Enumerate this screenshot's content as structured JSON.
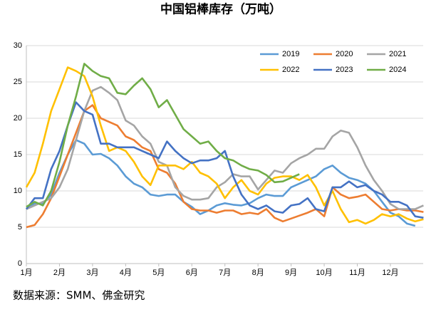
{
  "chart_data": {
    "type": "line",
    "title": "中国铝棒库存（万吨）",
    "source": "数据来源：SMM、佛金研究",
    "x": [
      0,
      0.25,
      0.5,
      0.75,
      1,
      1.25,
      1.5,
      1.75,
      2,
      2.25,
      2.5,
      2.75,
      3,
      3.25,
      3.5,
      3.75,
      4,
      4.25,
      4.5,
      4.75,
      5,
      5.25,
      5.5,
      5.75,
      6,
      6.25,
      6.5,
      6.75,
      7,
      7.25,
      7.5,
      7.75,
      8,
      8.25,
      8.5,
      8.75,
      9,
      9.25,
      9.5,
      9.75,
      10,
      10.25,
      10.5,
      10.75,
      11,
      11.25,
      11.5,
      11.75,
      12
    ],
    "xlim": [
      0,
      12
    ],
    "xticks": [
      {
        "value": 0,
        "label": "1月"
      },
      {
        "value": 1,
        "label": "2月"
      },
      {
        "value": 2,
        "label": "3月"
      },
      {
        "value": 3,
        "label": "4月"
      },
      {
        "value": 4,
        "label": "5月"
      },
      {
        "value": 5,
        "label": "6月"
      },
      {
        "value": 6,
        "label": "7月"
      },
      {
        "value": 7,
        "label": "8月"
      },
      {
        "value": 8,
        "label": "9月"
      },
      {
        "value": 9,
        "label": "10月"
      },
      {
        "value": 10,
        "label": "11月"
      },
      {
        "value": 11,
        "label": "12月"
      }
    ],
    "ylim": [
      0,
      30
    ],
    "yticks": [
      0,
      5,
      10,
      15,
      20,
      25,
      30
    ],
    "grid": true,
    "legend": "top-right",
    "series": [
      {
        "name": "2019",
        "color": "#5b9bd5",
        "values": [
          7.5,
          8.3,
          8.2,
          9.5,
          12.5,
          15,
          17,
          16.5,
          15,
          15.1,
          14.5,
          13.5,
          12,
          11,
          10.5,
          9.5,
          9.3,
          9.5,
          9.5,
          8.5,
          7.8,
          6.8,
          7.3,
          8,
          8.3,
          8.1,
          8,
          8.3,
          9,
          9.5,
          9.3,
          9.3,
          10.5,
          11,
          11.5,
          12,
          13,
          13.5,
          12.5,
          11.8,
          11.5,
          11,
          10,
          8.5,
          7,
          6.5,
          5.5,
          5.2,
          null
        ]
      },
      {
        "name": "2020",
        "color": "#ed7d31",
        "values": [
          5,
          5.3,
          6.8,
          9,
          12,
          15,
          18,
          21,
          21.8,
          20,
          19.5,
          19,
          17.5,
          17,
          16,
          15.5,
          13,
          12.5,
          11,
          8.5,
          7.5,
          7.3,
          7.3,
          7,
          7.3,
          7.3,
          6.8,
          7,
          6.8,
          7.5,
          6.3,
          5.8,
          6.2,
          6.6,
          7,
          7.5,
          6.5,
          10.5,
          9.5,
          9,
          9.2,
          9.5,
          8.5,
          7.5,
          7.3,
          7.5,
          7.3,
          7.3,
          7.1
        ]
      },
      {
        "name": "2021",
        "color": "#a5a5a5",
        "values": [
          7.5,
          8,
          8.5,
          9,
          10.5,
          13,
          17,
          21,
          23.8,
          24.3,
          23.5,
          22.5,
          19.7,
          19,
          17.5,
          16.5,
          14,
          13.5,
          10.5,
          9.3,
          8.8,
          8.8,
          9,
          10.5,
          11.2,
          12.3,
          12,
          12,
          10.2,
          11.5,
          12.8,
          12.5,
          13.8,
          14.5,
          15,
          15.8,
          15.8,
          17.5,
          18.3,
          18,
          16,
          13.5,
          11.5,
          10,
          8.2,
          7.5,
          7.5,
          7.5,
          8
        ]
      },
      {
        "name": "2022",
        "color": "#ffc000",
        "values": [
          10.5,
          12.5,
          16.5,
          21,
          24,
          27,
          26.5,
          25.8,
          23,
          19,
          15.5,
          16,
          15.5,
          14,
          12,
          10.8,
          13.5,
          13.5,
          13.5,
          13,
          14,
          12.5,
          12,
          11,
          9,
          10.5,
          11.5,
          10,
          9.5,
          11,
          11.8,
          12,
          12,
          11.5,
          12.2,
          10.5,
          8,
          10,
          7.5,
          5.7,
          6,
          5.5,
          6,
          6.8,
          6.5,
          6.8,
          6.2,
          5.8,
          6.1
        ]
      },
      {
        "name": "2023",
        "color": "#4472c4",
        "values": [
          7.5,
          9,
          9,
          13,
          15.5,
          19,
          22.2,
          21,
          20.5,
          16.5,
          16.5,
          16,
          16,
          16,
          15.5,
          15,
          14.5,
          16.8,
          15.5,
          14.5,
          13.8,
          14.2,
          14.2,
          14.5,
          15.5,
          12,
          9.5,
          8,
          7.5,
          8,
          7.2,
          7,
          8,
          8.2,
          9,
          7.5,
          7.2,
          10.5,
          10.5,
          11.3,
          10.5,
          10.8,
          10,
          9.5,
          8.5,
          8.5,
          8,
          6.5,
          6.3
        ]
      },
      {
        "name": "2024",
        "color": "#70ad47",
        "values": [
          7.8,
          8.5,
          8,
          10,
          14,
          19,
          23,
          27.5,
          26.5,
          25.8,
          25.5,
          23.5,
          23.3,
          24.5,
          25.5,
          24,
          21.5,
          22.5,
          20.5,
          18.5,
          17.5,
          16.5,
          16.8,
          15.5,
          14.5,
          14.2,
          13.5,
          13,
          12.8,
          12.2,
          11.2,
          11.3,
          11.8,
          12.3,
          null,
          null,
          null,
          null,
          null,
          null,
          null,
          null,
          null,
          null,
          null,
          null,
          null,
          null,
          null
        ]
      }
    ]
  }
}
